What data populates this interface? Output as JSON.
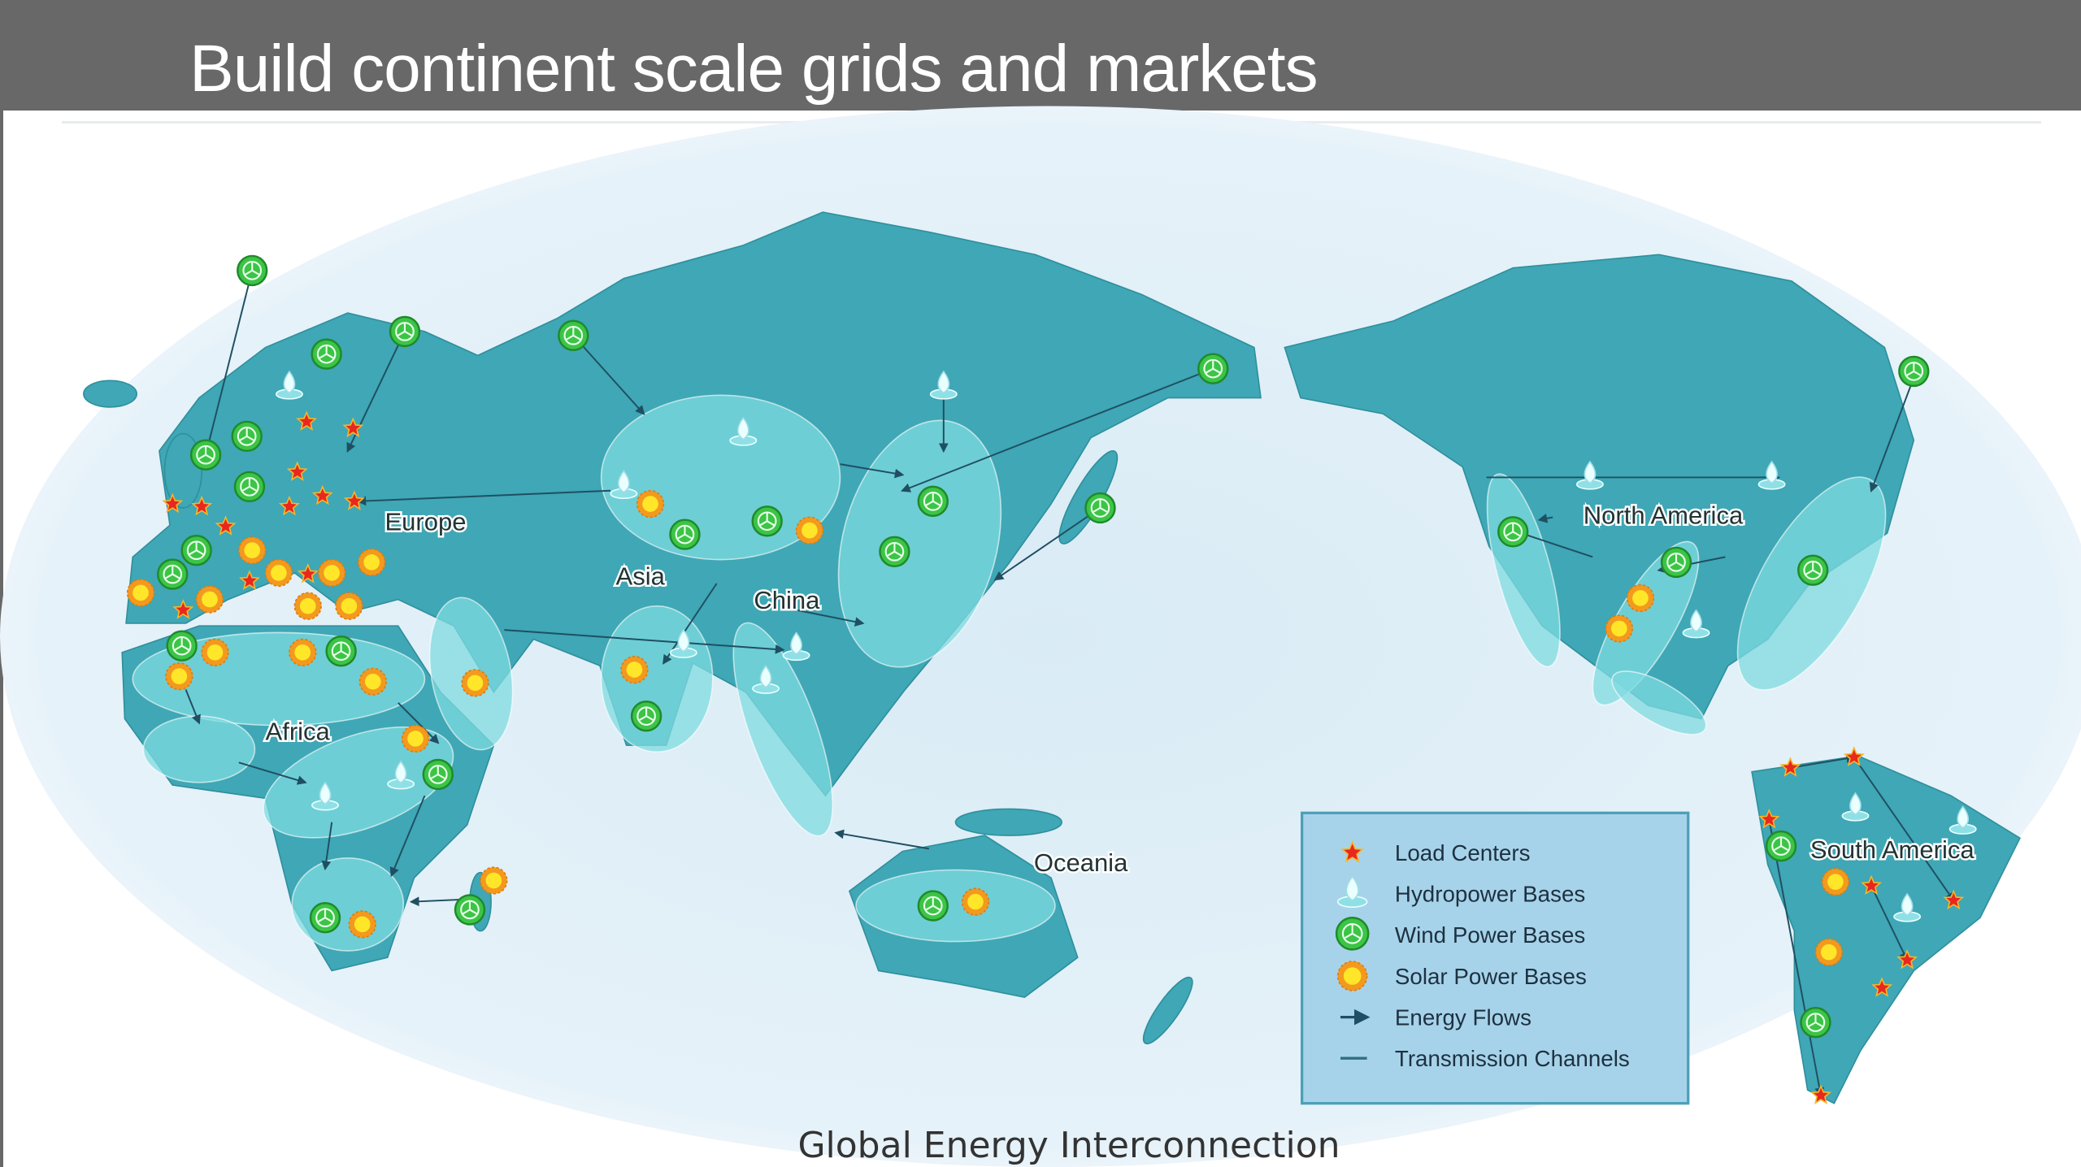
{
  "slide": {
    "title": "Build continent scale grids and markets"
  },
  "map": {
    "caption": "Global Energy Interconnection",
    "region_labels": {
      "europe": "Europe",
      "asia": "Asia",
      "china": "China",
      "africa": "Africa",
      "oceania": "Oceania",
      "north_america": "North America",
      "south_america": "South America"
    },
    "legend": [
      {
        "icon": "star-icon",
        "label": "Load Centers"
      },
      {
        "icon": "water-drop-icon",
        "label": "Hydropower Bases"
      },
      {
        "icon": "wind-turbine-icon",
        "label": "Wind Power Bases"
      },
      {
        "icon": "sun-icon",
        "label": "Solar Power Bases"
      },
      {
        "icon": "arrow-icon",
        "label": "Energy Flows"
      },
      {
        "icon": "line-icon",
        "label": "Transmission Channels"
      }
    ],
    "colors": {
      "ocean": "#e3f0f8",
      "land": "#3fa7b5",
      "land_light": "#56c3cc",
      "region": "#7fdbe0",
      "legend_bg": "#a7d3ea",
      "star": "#e8281e",
      "wind": "#3cc447",
      "solar": "#f6b627",
      "header": "#686868"
    }
  }
}
